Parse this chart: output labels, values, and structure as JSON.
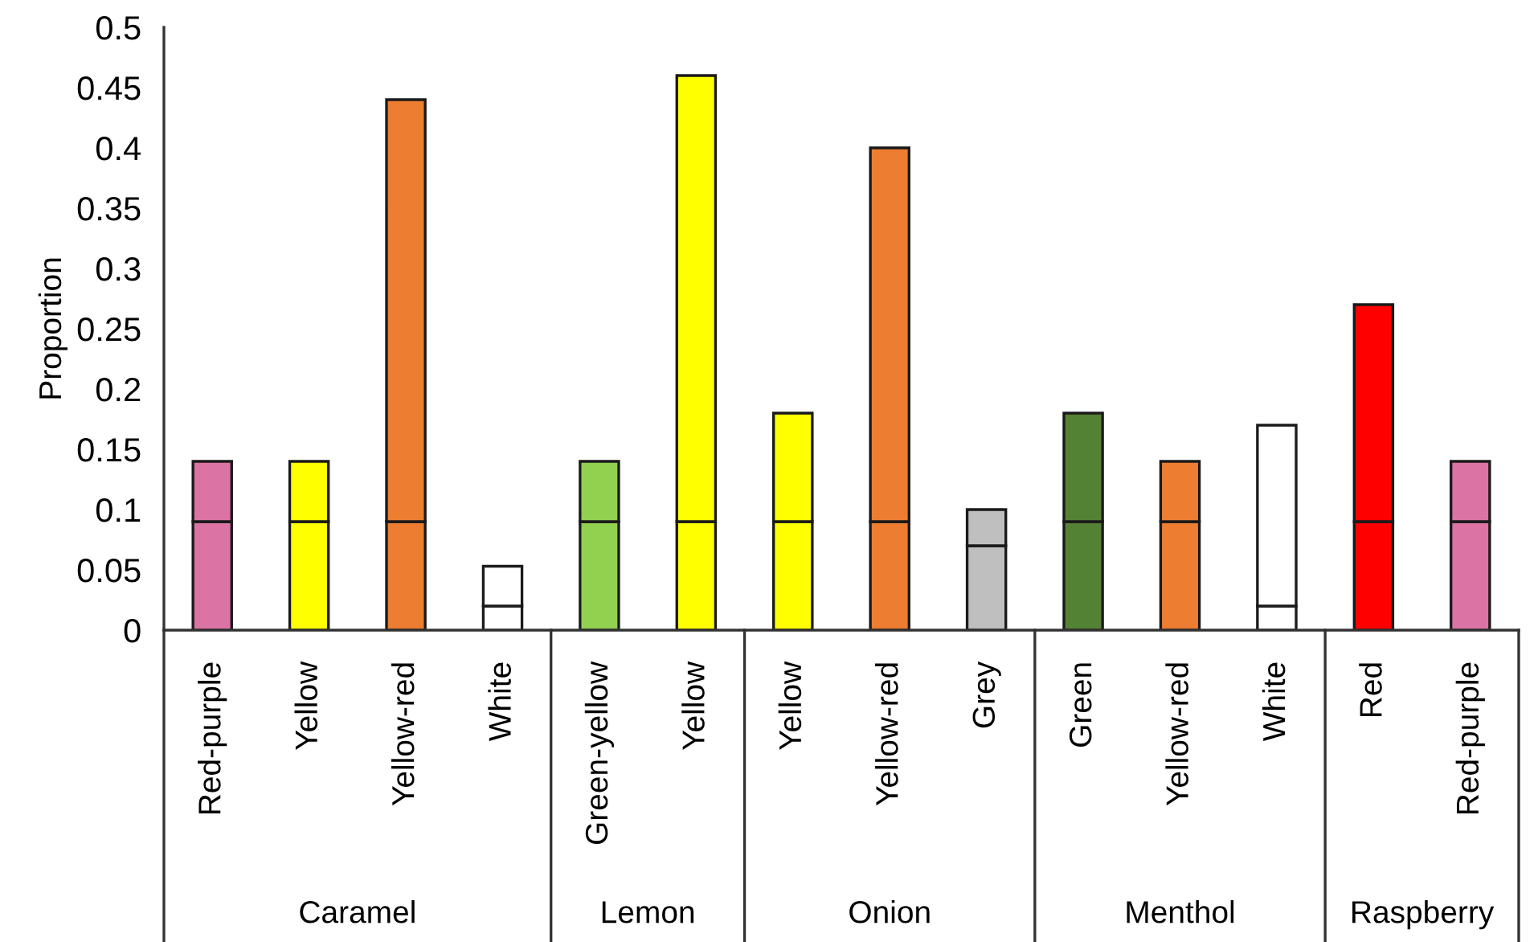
{
  "chart_data": [
    {
      "type": "bar",
      "stacked": true,
      "xlabel": "Caramel",
      "ylabel": "Proportion",
      "categories": [
        "Red-purple",
        "Yellow",
        "Yellow-red",
        "White"
      ],
      "series": [
        {
          "colors": [
            "#dc73a5",
            "#ffff00",
            "#ed7d31",
            "#ffffff"
          ],
          "values": [
            0.09,
            0.09,
            0.09,
            0.02
          ]
        },
        {
          "colors": [
            "#dc73a5",
            "#ffff00",
            "#ed7d31",
            "#ffffff"
          ],
          "values": [
            0.05,
            0.05,
            0.35,
            0.033
          ]
        }
      ],
      "ylim": [
        0,
        0.5
      ],
      "yticks": [
        0,
        0.05,
        0.1,
        0.15,
        0.2,
        0.25,
        0.3,
        0.35,
        0.4,
        0.45,
        0.5
      ]
    },
    {
      "type": "bar",
      "stacked": true,
      "xlabel": "Lemon",
      "categories": [
        "Green-yellow",
        "Yellow"
      ],
      "tick_labels": "x",
      "series": [
        {
          "colors": [
            "#92d050",
            "#ffff00"
          ],
          "values": [
            0.09,
            0.09
          ]
        },
        {
          "colors": [
            "#92d050",
            "#ffff00"
          ],
          "values": [
            0.05,
            0.37
          ]
        }
      ],
      "ylim": [
        0,
        0.5
      ]
    },
    {
      "type": "bar",
      "stacked": true,
      "xlabel": "Onion",
      "categories": [
        "Yellow",
        "Yellow-red",
        "Grey"
      ],
      "tick_labels": "x",
      "series": [
        {
          "colors": [
            "#ffff00",
            "#ed7d31",
            "#bfbfbf"
          ],
          "values": [
            0.09,
            0.09,
            0.07
          ]
        },
        {
          "colors": [
            "#ffff00",
            "#ed7d31",
            "#bfbfbf"
          ],
          "values": [
            0.09,
            0.31,
            0.03
          ]
        }
      ],
      "ylim": [
        0,
        0.5
      ]
    },
    {
      "type": "bar",
      "stacked": true,
      "xlabel": "Menthol",
      "categories": [
        "Green",
        "Yellow-red",
        "White"
      ],
      "tick_labels": "x",
      "series": [
        {
          "colors": [
            "#548235",
            "#ed7d31",
            "#ffffff"
          ],
          "values": [
            0.09,
            0.09,
            0.02
          ]
        },
        {
          "colors": [
            "#548235",
            "#ed7d31",
            "#ffffff"
          ],
          "values": [
            0.09,
            0.05,
            0.15
          ]
        }
      ],
      "ylim": [
        0,
        0.5
      ]
    },
    {
      "type": "bar",
      "stacked": true,
      "xlabel": "Raspberry",
      "categories": [
        "Red",
        "Red-purple"
      ],
      "tick_labels": "x",
      "series": [
        {
          "colors": [
            "#ff0000",
            "#dc73a5"
          ],
          "values": [
            0.09,
            0.09
          ]
        },
        {
          "colors": [
            "#ff0000",
            "#dc73a5"
          ],
          "values": [
            0.18,
            0.05
          ]
        }
      ],
      "ylim": [
        0,
        0.5
      ]
    }
  ]
}
